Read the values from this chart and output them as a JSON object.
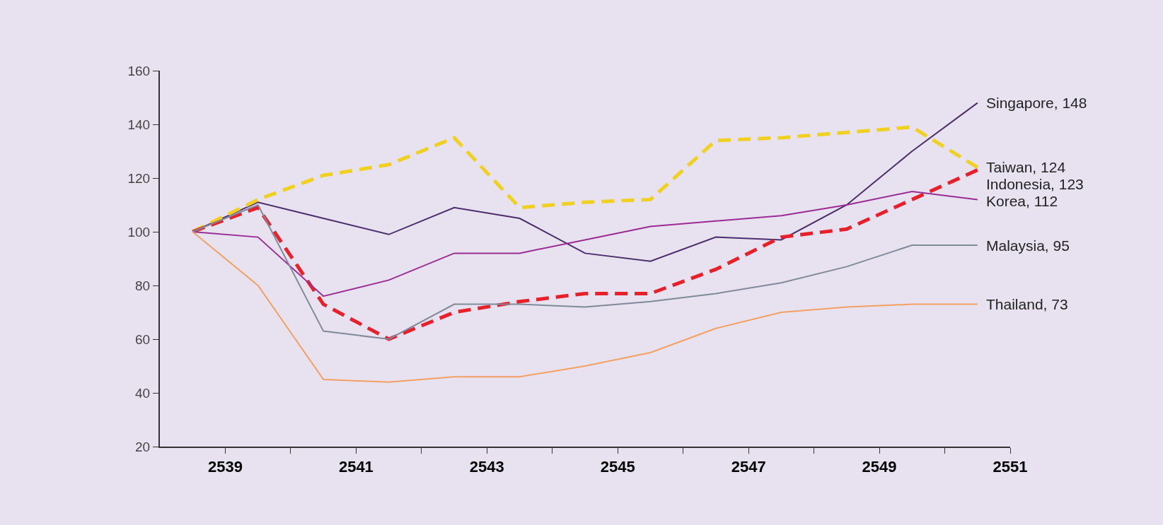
{
  "chart_data": {
    "type": "line",
    "x": [
      2538.5,
      2539.5,
      2540.5,
      2541.5,
      2542.5,
      2543.5,
      2544.5,
      2545.5,
      2546.5,
      2547.5,
      2548.5,
      2549.5,
      2550.5
    ],
    "xlim": [
      2538,
      2551
    ],
    "xticks": [
      2539,
      {
        "value": 2540,
        "label": null
      },
      2541,
      {
        "value": 2542,
        "label": null
      },
      2543,
      {
        "value": 2544,
        "label": null
      },
      2545,
      {
        "value": 2546,
        "label": null
      },
      2547,
      {
        "value": 2548,
        "label": null
      },
      2549,
      {
        "value": 2550,
        "label": null
      },
      2551
    ],
    "ylim": [
      20,
      160
    ],
    "yticks": [
      20,
      40,
      60,
      80,
      100,
      120,
      140,
      160
    ],
    "grid": false,
    "marker": "none",
    "series": [
      {
        "name": "Singapore, 148",
        "color": "#4b2e6b",
        "line_style": "solid",
        "values": [
          100,
          111,
          105,
          99,
          109,
          105,
          92,
          89,
          98,
          97,
          110,
          130,
          148
        ]
      },
      {
        "name": "Taiwan, 124",
        "color": "#f0d020",
        "line_style": "dashed",
        "values": [
          100,
          112,
          121,
          125,
          135,
          109,
          111,
          112,
          134,
          135,
          137,
          139,
          124
        ]
      },
      {
        "name": "Indonesia, 123",
        "color": "#e8202a",
        "line_style": "dashed",
        "values": [
          100,
          109,
          73,
          60,
          70,
          74,
          77,
          77,
          86,
          98,
          101,
          112,
          123
        ]
      },
      {
        "name": "Korea, 112",
        "color": "#9b2c94",
        "line_style": "solid",
        "values": [
          100,
          98,
          76,
          82,
          92,
          92,
          97,
          102,
          104,
          106,
          110,
          115,
          112
        ]
      },
      {
        "name": "Malaysia, 95",
        "color": "#7f8a9a",
        "line_style": "solid",
        "values": [
          100,
          110,
          63,
          60,
          73,
          73,
          72,
          74,
          77,
          81,
          87,
          95,
          95
        ]
      },
      {
        "name": "Thailand, 73",
        "color": "#f4a060",
        "line_style": "solid",
        "values": [
          100,
          80,
          45,
          44,
          46,
          46,
          50,
          55,
          64,
          70,
          72,
          73,
          73
        ]
      }
    ]
  }
}
